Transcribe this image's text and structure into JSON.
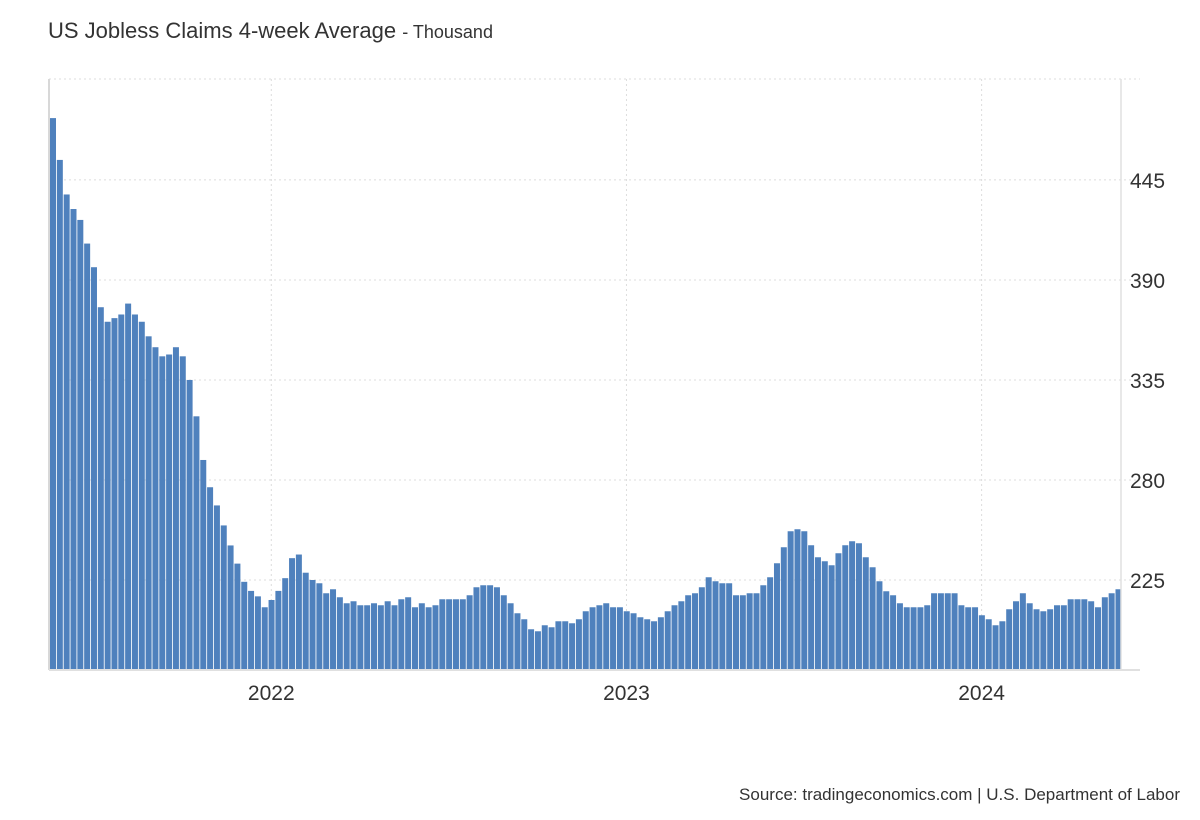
{
  "chart_data": {
    "type": "bar",
    "title": "US Jobless Claims 4-week Average",
    "unit_label": "- Thousand",
    "source": "Source: tradingeconomics.com | U.S. Department of Labor",
    "xlabel": "",
    "ylabel": "",
    "ylim": [
      175.5,
      500.5
    ],
    "yticks": [
      "225",
      "280",
      "335",
      "390",
      "445"
    ],
    "ytick_values": [
      225,
      280,
      335,
      390,
      445
    ],
    "y_axis_position": "right",
    "grid": true,
    "bar_color": "#4f81bd",
    "xticks": [
      {
        "label": "2022",
        "index": 32.4
      },
      {
        "label": "2023",
        "index": 84.4
      },
      {
        "label": "2024",
        "index": 136.4
      }
    ],
    "values": [
      479,
      456,
      437,
      429,
      423,
      410,
      397,
      375,
      367,
      369,
      371,
      377,
      371,
      367,
      359,
      353,
      348,
      349,
      353,
      348,
      335,
      315,
      291,
      276,
      266,
      255,
      244,
      234,
      224,
      219,
      216,
      210,
      214,
      219,
      226,
      237,
      239,
      229,
      225,
      223.2,
      217.7,
      219.9,
      215.5,
      212.2,
      213.3,
      211.1,
      211.1,
      212.2,
      211.1,
      213.3,
      211.1,
      214.4,
      215.5,
      210,
      212.2,
      210,
      211.1,
      214.4,
      214.4,
      214.4,
      214.4,
      216.6,
      221,
      222.1,
      222.1,
      221,
      216.6,
      212.2,
      206.7,
      203.4,
      197.9,
      196.8,
      200.1,
      199,
      202.3,
      202.3,
      201.2,
      203.4,
      207.8,
      210,
      211.1,
      212.2,
      210,
      210,
      207.8,
      206.7,
      204.5,
      203.4,
      202.3,
      204.5,
      207.8,
      211.1,
      213.3,
      216.6,
      217.7,
      221,
      226.5,
      224.3,
      223.2,
      223.2,
      216.6,
      216.6,
      217.7,
      217.7,
      222.1,
      226.5,
      234.2,
      243,
      251.8,
      252.9,
      251.8,
      244.1,
      237.5,
      235.3,
      233.1,
      239.7,
      244.1,
      246.3,
      245.2,
      237.5,
      232,
      224.3,
      218.8,
      216.6,
      212.2,
      210,
      210,
      210,
      211.1,
      217.7,
      217.7,
      217.7,
      217.7,
      211.1,
      210,
      210,
      205.6,
      203.4,
      200.1,
      202.3,
      208.9,
      213.3,
      217.7,
      212.2,
      208.9,
      207.8,
      208.9,
      211.1,
      211.1,
      214.4,
      214.4,
      214.4,
      213.3,
      210,
      215.5,
      217.7,
      219.9
    ]
  }
}
